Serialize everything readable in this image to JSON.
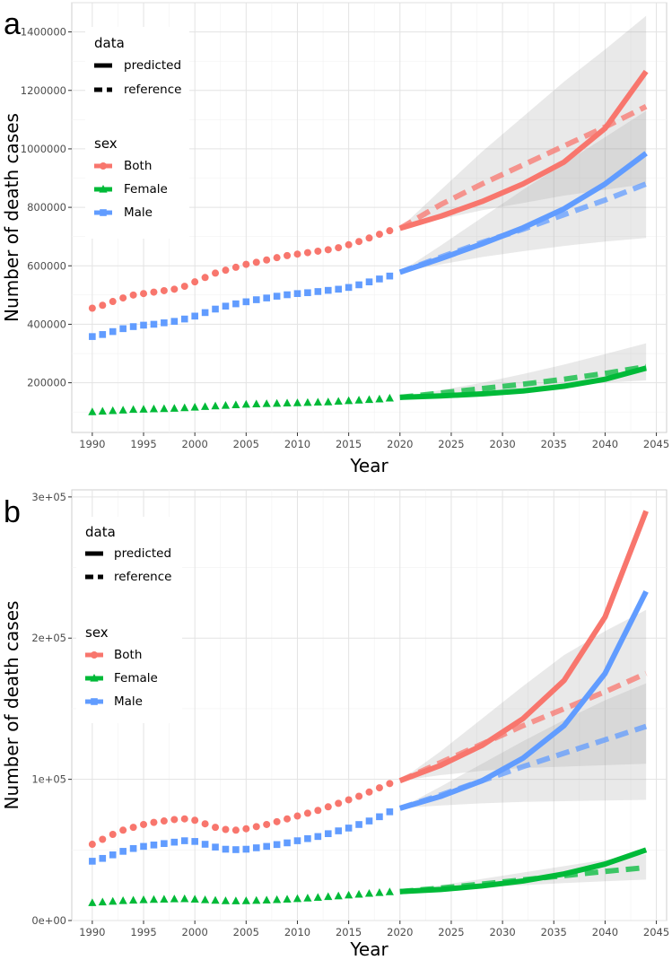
{
  "chart_data": [
    {
      "panel": "a",
      "type": "line",
      "xlabel": "Year",
      "ylabel": "Number of death cases",
      "xlim": [
        1988,
        2046
      ],
      "ylim": [
        30000,
        1500000
      ],
      "xticks": [
        1990,
        1995,
        2000,
        2005,
        2010,
        2015,
        2020,
        2025,
        2030,
        2035,
        2040,
        2045
      ],
      "yticks": [
        200000,
        400000,
        600000,
        800000,
        1000000,
        1200000,
        1400000
      ],
      "ytick_labels": [
        "200000",
        "400000",
        "600000",
        "800000",
        "1000000",
        "1200000",
        "1400000"
      ],
      "legend_data": {
        "title": "data",
        "items": [
          "predicted",
          "reference"
        ]
      },
      "legend_sex": {
        "title": "sex",
        "items": [
          "Both",
          "Female",
          "Male"
        ]
      },
      "series": [
        {
          "name": "Both",
          "color": "#F8766D",
          "observed": [
            455000,
            465000,
            478000,
            490000,
            500000,
            505000,
            510000,
            515000,
            520000,
            530000,
            545000,
            560000,
            575000,
            585000,
            595000,
            605000,
            612000,
            620000,
            628000,
            635000,
            640000,
            645000,
            650000,
            655000,
            662000,
            672000,
            683000,
            695000,
            708000,
            720000
          ],
          "predicted": [
            [
              2020,
              728000
            ],
            [
              2024,
              770000
            ],
            [
              2028,
              820000
            ],
            [
              2032,
              880000
            ],
            [
              2036,
              955000
            ],
            [
              2040,
              1070000
            ],
            [
              2044,
              1265000
            ]
          ],
          "reference": [
            [
              2020,
              728000
            ],
            [
              2024,
              810000
            ],
            [
              2028,
              880000
            ],
            [
              2032,
              945000
            ],
            [
              2036,
              1010000
            ],
            [
              2040,
              1075000
            ],
            [
              2044,
              1145000
            ]
          ],
          "band_lower": [
            [
              2020,
              728000
            ],
            [
              2024,
              760000
            ],
            [
              2028,
              790000
            ],
            [
              2032,
              815000
            ],
            [
              2036,
              840000
            ],
            [
              2040,
              860000
            ],
            [
              2044,
              880000
            ]
          ],
          "band_upper": [
            [
              2020,
              728000
            ],
            [
              2024,
              860000
            ],
            [
              2028,
              990000
            ],
            [
              2032,
              1110000
            ],
            [
              2036,
              1230000
            ],
            [
              2040,
              1340000
            ],
            [
              2044,
              1455000
            ]
          ]
        },
        {
          "name": "Female",
          "color": "#00BA38",
          "observed": [
            100000,
            102000,
            104000,
            106000,
            108000,
            109000,
            110000,
            111000,
            112000,
            114000,
            116000,
            118000,
            120000,
            122000,
            124000,
            126000,
            127000,
            128000,
            129000,
            130000,
            131000,
            132000,
            133000,
            134000,
            136000,
            138000,
            140000,
            142000,
            144000,
            147000
          ],
          "predicted": [
            [
              2020,
              150000
            ],
            [
              2024,
              155000
            ],
            [
              2028,
              162000
            ],
            [
              2032,
              172000
            ],
            [
              2036,
              188000
            ],
            [
              2040,
              212000
            ],
            [
              2044,
              250000
            ]
          ],
          "reference": [
            [
              2020,
              150000
            ],
            [
              2024,
              165000
            ],
            [
              2028,
              180000
            ],
            [
              2032,
              195000
            ],
            [
              2036,
              212000
            ],
            [
              2040,
              232000
            ],
            [
              2044,
              255000
            ]
          ],
          "band_lower": [
            [
              2020,
              150000
            ],
            [
              2024,
              160000
            ],
            [
              2028,
              170000
            ],
            [
              2032,
              180000
            ],
            [
              2036,
              190000
            ],
            [
              2040,
              200000
            ],
            [
              2044,
              208000
            ]
          ],
          "band_upper": [
            [
              2020,
              150000
            ],
            [
              2024,
              175000
            ],
            [
              2028,
              200000
            ],
            [
              2032,
              230000
            ],
            [
              2036,
              262000
            ],
            [
              2040,
              298000
            ],
            [
              2044,
              335000
            ]
          ]
        },
        {
          "name": "Male",
          "color": "#619CFF",
          "observed": [
            358000,
            365000,
            375000,
            385000,
            392000,
            397000,
            400000,
            405000,
            410000,
            418000,
            428000,
            440000,
            452000,
            462000,
            470000,
            477000,
            484000,
            490000,
            496000,
            501000,
            505000,
            508000,
            512000,
            516000,
            520000,
            526000,
            535000,
            545000,
            555000,
            565000
          ],
          "predicted": [
            [
              2020,
              578000
            ],
            [
              2024,
              625000
            ],
            [
              2028,
              675000
            ],
            [
              2032,
              730000
            ],
            [
              2036,
              795000
            ],
            [
              2040,
              880000
            ],
            [
              2044,
              985000
            ]
          ],
          "reference": [
            [
              2020,
              578000
            ],
            [
              2024,
              630000
            ],
            [
              2028,
              680000
            ],
            [
              2032,
              725000
            ],
            [
              2036,
              775000
            ],
            [
              2040,
              825000
            ],
            [
              2044,
              880000
            ]
          ],
          "band_lower": [
            [
              2020,
              578000
            ],
            [
              2024,
              605000
            ],
            [
              2028,
              630000
            ],
            [
              2032,
              650000
            ],
            [
              2036,
              668000
            ],
            [
              2040,
              683000
            ],
            [
              2044,
              695000
            ]
          ],
          "band_upper": [
            [
              2020,
              578000
            ],
            [
              2024,
              670000
            ],
            [
              2028,
              765000
            ],
            [
              2032,
              860000
            ],
            [
              2036,
              950000
            ],
            [
              2040,
              1040000
            ],
            [
              2044,
              1130000
            ]
          ]
        }
      ]
    },
    {
      "panel": "b",
      "type": "line",
      "xlabel": "Year",
      "ylabel": "Number of death cases",
      "xlim": [
        1988,
        2046
      ],
      "ylim": [
        0,
        305000
      ],
      "xticks": [
        1990,
        1995,
        2000,
        2005,
        2010,
        2015,
        2020,
        2025,
        2030,
        2035,
        2040,
        2045
      ],
      "yticks": [
        0,
        100000,
        200000,
        300000
      ],
      "ytick_labels": [
        "0e+00",
        "1e+05",
        "2e+05",
        "3e+05"
      ],
      "legend_data": {
        "title": "data",
        "items": [
          "predicted",
          "reference"
        ]
      },
      "legend_sex": {
        "title": "sex",
        "items": [
          "Both",
          "Female",
          "Male"
        ]
      },
      "series": [
        {
          "name": "Both",
          "color": "#F8766D",
          "observed": [
            54000,
            57500,
            61000,
            64000,
            66000,
            68000,
            69500,
            70500,
            71500,
            72000,
            71000,
            68500,
            66000,
            64500,
            64000,
            65000,
            66500,
            68000,
            70000,
            72000,
            74000,
            76000,
            78000,
            80500,
            83000,
            85500,
            88000,
            91000,
            94000,
            97000
          ],
          "predicted": [
            [
              2020,
              99000
            ],
            [
              2024,
              110000
            ],
            [
              2028,
              124000
            ],
            [
              2032,
              143000
            ],
            [
              2036,
              170000
            ],
            [
              2040,
              215000
            ],
            [
              2044,
              290000
            ]
          ],
          "reference": [
            [
              2020,
              99000
            ],
            [
              2024,
              112000
            ],
            [
              2028,
              125000
            ],
            [
              2032,
              138000
            ],
            [
              2036,
              150000
            ],
            [
              2040,
              162000
            ],
            [
              2044,
              175000
            ]
          ],
          "band_lower": [
            [
              2020,
              99000
            ],
            [
              2024,
              103000
            ],
            [
              2028,
              106000
            ],
            [
              2032,
              108000
            ],
            [
              2036,
              109000
            ],
            [
              2040,
              110000
            ],
            [
              2044,
              111000
            ]
          ],
          "band_upper": [
            [
              2020,
              99000
            ],
            [
              2024,
              120000
            ],
            [
              2028,
              143000
            ],
            [
              2032,
              166000
            ],
            [
              2036,
              188000
            ],
            [
              2040,
              205000
            ],
            [
              2044,
              220000
            ]
          ]
        },
        {
          "name": "Female",
          "color": "#00BA38",
          "observed": [
            12500,
            13000,
            13500,
            14000,
            14300,
            14600,
            14800,
            15000,
            15200,
            15300,
            15000,
            14600,
            14200,
            13900,
            13800,
            13900,
            14100,
            14400,
            14700,
            15000,
            15400,
            15800,
            16300,
            16800,
            17300,
            17900,
            18500,
            19100,
            19700,
            20200
          ],
          "predicted": [
            [
              2020,
              20500
            ],
            [
              2024,
              22000
            ],
            [
              2028,
              24500
            ],
            [
              2032,
              28000
            ],
            [
              2036,
              33000
            ],
            [
              2040,
              40000
            ],
            [
              2044,
              50000
            ]
          ],
          "reference": [
            [
              2020,
              20500
            ],
            [
              2024,
              23000
            ],
            [
              2028,
              25800
            ],
            [
              2032,
              28800
            ],
            [
              2036,
              31800
            ],
            [
              2040,
              34800
            ],
            [
              2044,
              37500
            ]
          ],
          "band_lower": [
            [
              2020,
              20500
            ],
            [
              2024,
              22000
            ],
            [
              2028,
              23500
            ],
            [
              2032,
              25000
            ],
            [
              2036,
              26500
            ],
            [
              2040,
              27800
            ],
            [
              2044,
              29000
            ]
          ],
          "band_upper": [
            [
              2020,
              20500
            ],
            [
              2024,
              25000
            ],
            [
              2028,
              29500
            ],
            [
              2032,
              34000
            ],
            [
              2036,
              38500
            ],
            [
              2040,
              43000
            ],
            [
              2044,
              47000
            ]
          ]
        },
        {
          "name": "Male",
          "color": "#619CFF",
          "observed": [
            42000,
            44000,
            46500,
            49000,
            51000,
            52500,
            53500,
            54500,
            55500,
            56500,
            56000,
            54000,
            52000,
            50500,
            50200,
            50500,
            51500,
            52500,
            53800,
            55000,
            56500,
            58000,
            59500,
            61500,
            63500,
            65500,
            68000,
            70500,
            73500,
            77000
          ],
          "predicted": [
            [
              2020,
              79500
            ],
            [
              2024,
              88000
            ],
            [
              2028,
              99000
            ],
            [
              2032,
              115000
            ],
            [
              2036,
              138000
            ],
            [
              2040,
              175000
            ],
            [
              2044,
              233000
            ]
          ],
          "reference": [
            [
              2020,
              79500
            ],
            [
              2024,
              89000
            ],
            [
              2028,
              99000
            ],
            [
              2032,
              109000
            ],
            [
              2036,
              118500
            ],
            [
              2040,
              128000
            ],
            [
              2044,
              137500
            ]
          ],
          "band_lower": [
            [
              2020,
              79500
            ],
            [
              2024,
              81500
            ],
            [
              2028,
              83000
            ],
            [
              2032,
              84000
            ],
            [
              2036,
              84500
            ],
            [
              2040,
              85000
            ],
            [
              2044,
              85500
            ]
          ],
          "band_upper": [
            [
              2020,
              79500
            ],
            [
              2024,
              95000
            ],
            [
              2028,
              111000
            ],
            [
              2032,
              127000
            ],
            [
              2036,
              142000
            ],
            [
              2040,
              156000
            ],
            [
              2044,
              168000
            ]
          ]
        }
      ]
    }
  ]
}
